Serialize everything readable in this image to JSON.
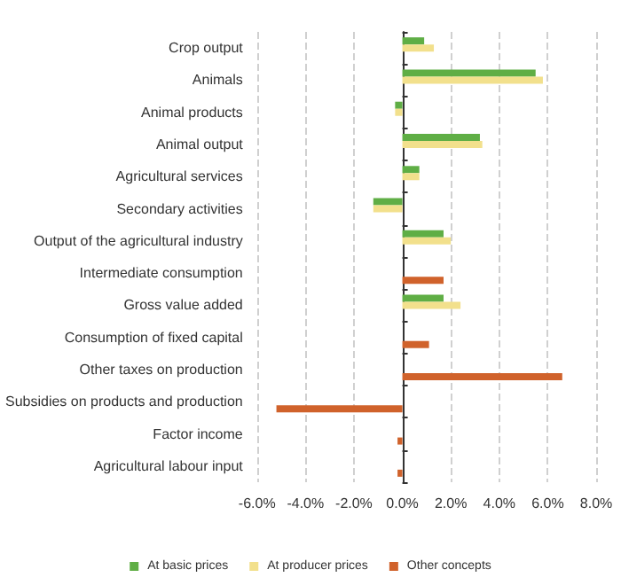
{
  "chart_data": {
    "type": "bar",
    "orientation": "horizontal",
    "categories": [
      "Crop output",
      "Animals",
      "Animal products",
      "Animal output",
      "Agricultural services",
      "Secondary activities",
      "Output of the agricultural industry",
      "Intermediate consumption",
      "Gross value added",
      "Consumption of fixed capital",
      "Other taxes on production",
      "Subsidies on products and production",
      "Factor income",
      "Agricultural labour input"
    ],
    "series": [
      {
        "name": "At basic prices",
        "color": "#5fae45",
        "values": [
          0.9,
          5.5,
          -0.3,
          3.2,
          0.7,
          -1.2,
          1.7,
          null,
          1.7,
          null,
          null,
          null,
          null,
          null
        ]
      },
      {
        "name": "At producer prices",
        "color": "#f2e08c",
        "values": [
          1.3,
          5.8,
          -0.3,
          3.3,
          0.7,
          -1.2,
          2.0,
          null,
          2.4,
          null,
          null,
          null,
          null,
          null
        ]
      },
      {
        "name": "Other concepts",
        "color": "#d0622b",
        "values": [
          null,
          null,
          null,
          null,
          null,
          null,
          null,
          1.7,
          null,
          1.1,
          6.6,
          -5.2,
          -0.2,
          -0.2
        ]
      }
    ],
    "xlim": [
      -6,
      8
    ],
    "xticks": [
      {
        "value": -6,
        "label": "-6.0%"
      },
      {
        "value": -4,
        "label": "-4.0%"
      },
      {
        "value": -2,
        "label": "-2.0%"
      },
      {
        "value": 0,
        "label": "0.0%"
      },
      {
        "value": 2,
        "label": "2.0%"
      },
      {
        "value": 4,
        "label": "4.0%"
      },
      {
        "value": 6,
        "label": "6.0%"
      },
      {
        "value": 8,
        "label": "8.0%"
      }
    ],
    "grid": "x",
    "legend": "bottom"
  }
}
